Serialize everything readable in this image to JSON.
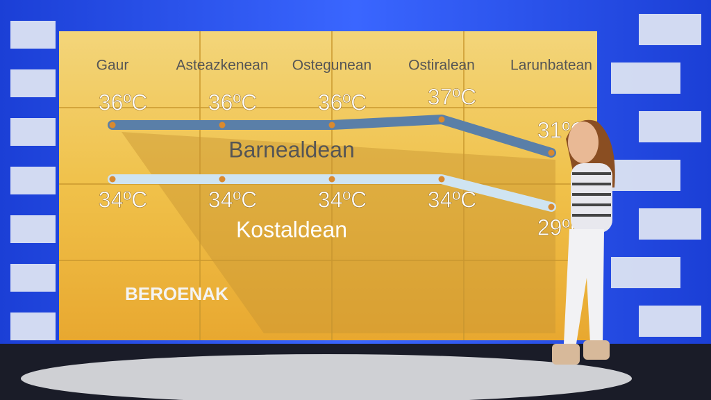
{
  "chart_data": {
    "type": "line",
    "title": "BEROENAK",
    "categories": [
      "Gaur",
      "Asteazkenean",
      "Ostegunean",
      "Ostiralean",
      "Larunbatean"
    ],
    "series": [
      {
        "name": "Barnealdean",
        "color": "#5a7fa8",
        "values": [
          36,
          36,
          36,
          37,
          31
        ],
        "value_labels": [
          "36ºC",
          "36ºC",
          "36ºC",
          "37ºC",
          "31ºC"
        ]
      },
      {
        "name": "Kostaldean",
        "color": "#cfe4f2",
        "values": [
          34,
          34,
          34,
          34,
          29
        ],
        "value_labels": [
          "34ºC",
          "34ºC",
          "34ºC",
          "34ºC",
          "29ºC"
        ]
      }
    ]
  }
}
